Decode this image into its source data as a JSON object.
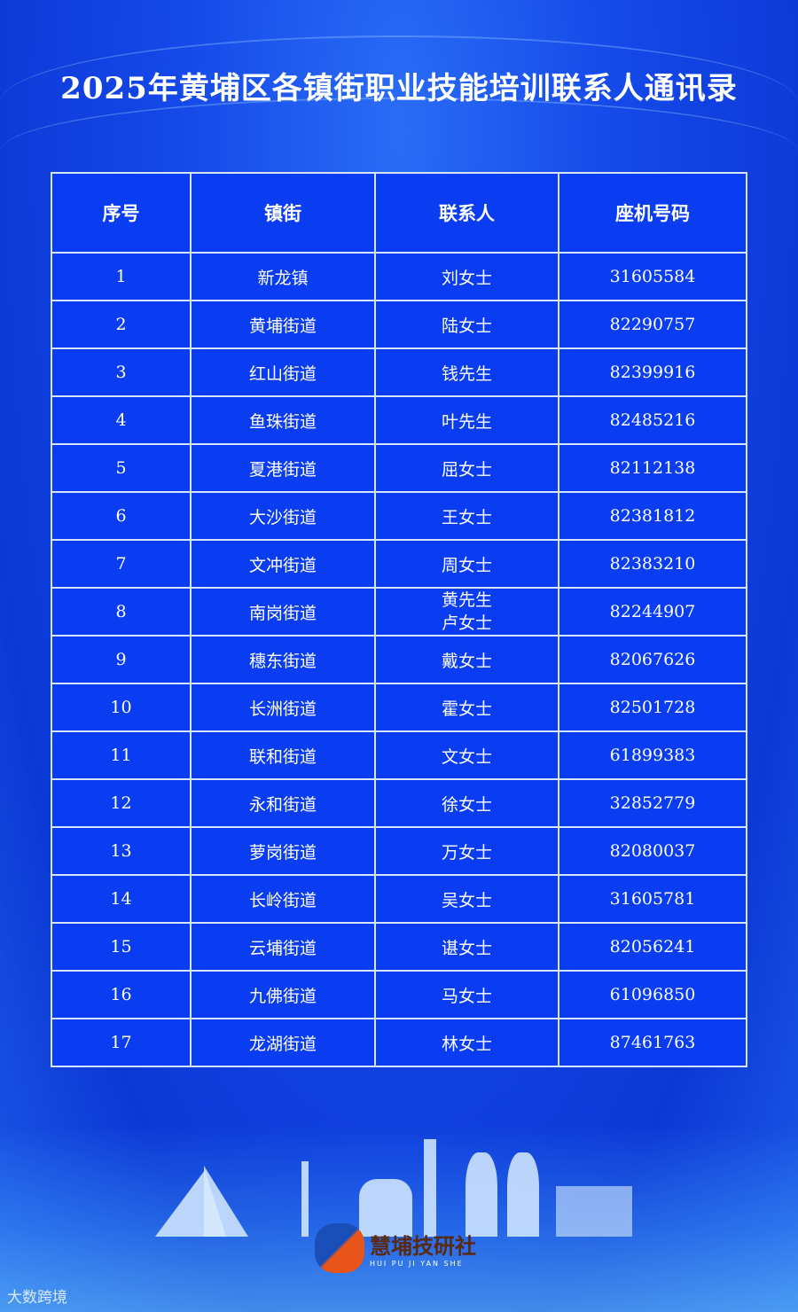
{
  "title": "2025年黄埔区各镇街职业技能培训联系人通讯录",
  "table": {
    "headers": [
      "序号",
      "镇街",
      "联系人",
      "座机号码"
    ],
    "rows": [
      {
        "no": "1",
        "town": "新龙镇",
        "contact": "刘女士",
        "phone": "31605584"
      },
      {
        "no": "2",
        "town": "黄埔街道",
        "contact": "陆女士",
        "phone": "82290757"
      },
      {
        "no": "3",
        "town": "红山街道",
        "contact": "钱先生",
        "phone": "82399916"
      },
      {
        "no": "4",
        "town": "鱼珠街道",
        "contact": "叶先生",
        "phone": "82485216"
      },
      {
        "no": "5",
        "town": "夏港街道",
        "contact": "屈女士",
        "phone": "82112138"
      },
      {
        "no": "6",
        "town": "大沙街道",
        "contact": "王女士",
        "phone": "82381812"
      },
      {
        "no": "7",
        "town": "文冲街道",
        "contact": "周女士",
        "phone": "82383210"
      },
      {
        "no": "8",
        "town": "南岗街道",
        "contact": "黄先生",
        "contact2": "卢女士",
        "phone": "82244907"
      },
      {
        "no": "9",
        "town": "穗东街道",
        "contact": "戴女士",
        "phone": "82067626"
      },
      {
        "no": "10",
        "town": "长洲街道",
        "contact": "霍女士",
        "phone": "82501728"
      },
      {
        "no": "11",
        "town": "联和街道",
        "contact": "文女士",
        "phone": "61899383"
      },
      {
        "no": "12",
        "town": "永和街道",
        "contact": "徐女士",
        "phone": "32852779"
      },
      {
        "no": "13",
        "town": "萝岗街道",
        "contact": "万女士",
        "phone": "82080037"
      },
      {
        "no": "14",
        "town": "长岭街道",
        "contact": "吴女士",
        "phone": "31605781"
      },
      {
        "no": "15",
        "town": "云埔街道",
        "contact": "谌女士",
        "phone": "82056241"
      },
      {
        "no": "16",
        "town": "九佛街道",
        "contact": "马女士",
        "phone": "61096850"
      },
      {
        "no": "17",
        "town": "龙湖街道",
        "contact": "林女士",
        "phone": "87461763"
      }
    ]
  },
  "logo": {
    "name": "慧埔技研社",
    "pinyin": "HUI PU JI YAN SHE"
  },
  "watermark": "大数跨境",
  "colors": {
    "background": "#1448e8",
    "table": "#0a3df2",
    "border": "#d6e4ff"
  }
}
